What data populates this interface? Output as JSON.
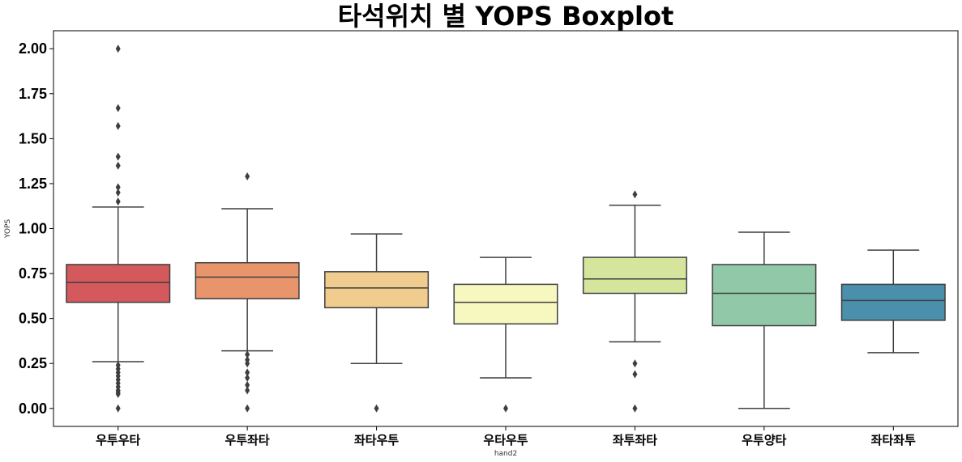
{
  "chart_data": {
    "type": "boxplot",
    "title": "타석위치 별 YOPS Boxplot",
    "xlabel": "hand2",
    "ylabel": "YOPS",
    "ylim": [
      -0.1,
      2.1
    ],
    "yticks": [
      "0.00",
      "0.25",
      "0.50",
      "0.75",
      "1.00",
      "1.25",
      "1.50",
      "1.75",
      "2.00"
    ],
    "categories": [
      "우투우타",
      "우투좌타",
      "좌타우투",
      "우타우투",
      "좌투좌타",
      "우투양타",
      "좌타좌투"
    ],
    "boxes": [
      {
        "category": "우투우타",
        "color": "#d4595c",
        "whisker_low": 0.26,
        "q1": 0.59,
        "median": 0.7,
        "q3": 0.8,
        "whisker_high": 1.12,
        "outliers": [
          2.0,
          1.67,
          1.57,
          1.4,
          1.35,
          1.23,
          1.2,
          1.15,
          0.24,
          0.22,
          0.2,
          0.18,
          0.16,
          0.14,
          0.12,
          0.1,
          0.09,
          0.08,
          0.0
        ]
      },
      {
        "category": "우투좌타",
        "color": "#e8956b",
        "whisker_low": 0.32,
        "q1": 0.61,
        "median": 0.73,
        "q3": 0.81,
        "whisker_high": 1.11,
        "outliers": [
          1.29,
          0.3,
          0.27,
          0.25,
          0.2,
          0.17,
          0.13,
          0.1,
          0.0
        ]
      },
      {
        "category": "좌타우투",
        "color": "#f0cd8e",
        "whisker_low": 0.25,
        "q1": 0.56,
        "median": 0.67,
        "q3": 0.76,
        "whisker_high": 0.97,
        "outliers": [
          0.0
        ]
      },
      {
        "category": "우타우투",
        "color": "#f7f8bf",
        "whisker_low": 0.17,
        "q1": 0.47,
        "median": 0.59,
        "q3": 0.69,
        "whisker_high": 0.84,
        "outliers": [
          0.0
        ]
      },
      {
        "category": "좌투좌타",
        "color": "#d6e59c",
        "whisker_low": 0.37,
        "q1": 0.64,
        "median": 0.72,
        "q3": 0.84,
        "whisker_high": 1.13,
        "outliers": [
          1.19,
          0.25,
          0.19,
          0.0
        ]
      },
      {
        "category": "우투양타",
        "color": "#91c8a7",
        "whisker_low": 0.0,
        "q1": 0.46,
        "median": 0.64,
        "q3": 0.8,
        "whisker_high": 0.98,
        "outliers": []
      },
      {
        "category": "좌타좌투",
        "color": "#4a8fab",
        "whisker_low": 0.31,
        "q1": 0.49,
        "median": 0.6,
        "q3": 0.69,
        "whisker_high": 0.88,
        "outliers": []
      }
    ],
    "line_color": "#3f3f3f",
    "grid": false,
    "legend": "none"
  }
}
